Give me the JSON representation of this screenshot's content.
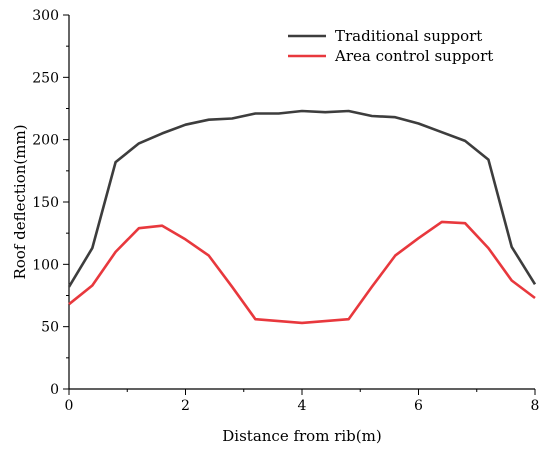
{
  "chart_data": {
    "type": "line",
    "xlabel": "Distance from rib(m)",
    "ylabel": "Roof deflection(mm)",
    "xlim": [
      0,
      8
    ],
    "ylim": [
      0,
      300
    ],
    "xticks": [
      0,
      2,
      4,
      6,
      8
    ],
    "yticks": [
      0,
      50,
      100,
      150,
      200,
      250,
      300
    ],
    "grid": false,
    "legend_position": "top-right",
    "series": [
      {
        "name": "Traditional support",
        "color": "#3d3d3d",
        "x": [
          0,
          0.4,
          0.8,
          1.2,
          1.6,
          2.0,
          2.4,
          2.8,
          3.2,
          3.6,
          4.0,
          4.4,
          4.8,
          5.2,
          5.6,
          6.0,
          6.4,
          6.8,
          7.2,
          7.6,
          8.0
        ],
        "y": [
          82,
          113,
          182,
          197,
          205,
          212,
          216,
          217,
          221,
          221,
          223,
          222,
          223,
          219,
          218,
          213,
          206,
          199,
          184,
          114,
          84
        ]
      },
      {
        "name": "Area control support",
        "color": "#e8383d",
        "x": [
          0,
          0.4,
          0.8,
          1.2,
          1.6,
          2.0,
          2.4,
          2.8,
          3.2,
          4.0,
          4.8,
          5.2,
          5.6,
          6.0,
          6.4,
          6.8,
          7.2,
          7.6,
          8.0
        ],
        "y": [
          68,
          83,
          110,
          129,
          131,
          120,
          107,
          82,
          56,
          53,
          56,
          82,
          107,
          121,
          134,
          133,
          113,
          87,
          73
        ]
      }
    ]
  }
}
